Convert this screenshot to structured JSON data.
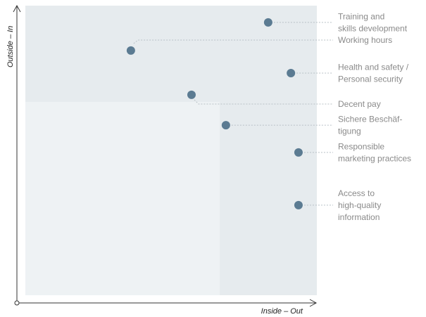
{
  "chart_data": {
    "type": "scatter",
    "xlabel": "Inside – Out",
    "ylabel": "Outside – In",
    "xlim": [
      0,
      100
    ],
    "ylim": [
      0,
      100
    ],
    "color": "#5b7b92",
    "labels": [
      [
        "Training and",
        "skills development"
      ],
      [
        "Working hours"
      ],
      [
        "Health and safety /",
        "Personal security"
      ],
      [
        "Decent pay"
      ],
      [
        "Sichere Beschäf-",
        "tigung"
      ],
      [
        "Responsible",
        "marketing practices"
      ],
      [
        "Access to",
        "high-quality",
        "information"
      ]
    ],
    "x": [
      83.3,
      36.2,
      91.1,
      57.0,
      68.8,
      93.7,
      93.7
    ],
    "values": [
      94.2,
      84.5,
      76.7,
      69.2,
      58.7,
      49.3,
      31.1
    ]
  }
}
